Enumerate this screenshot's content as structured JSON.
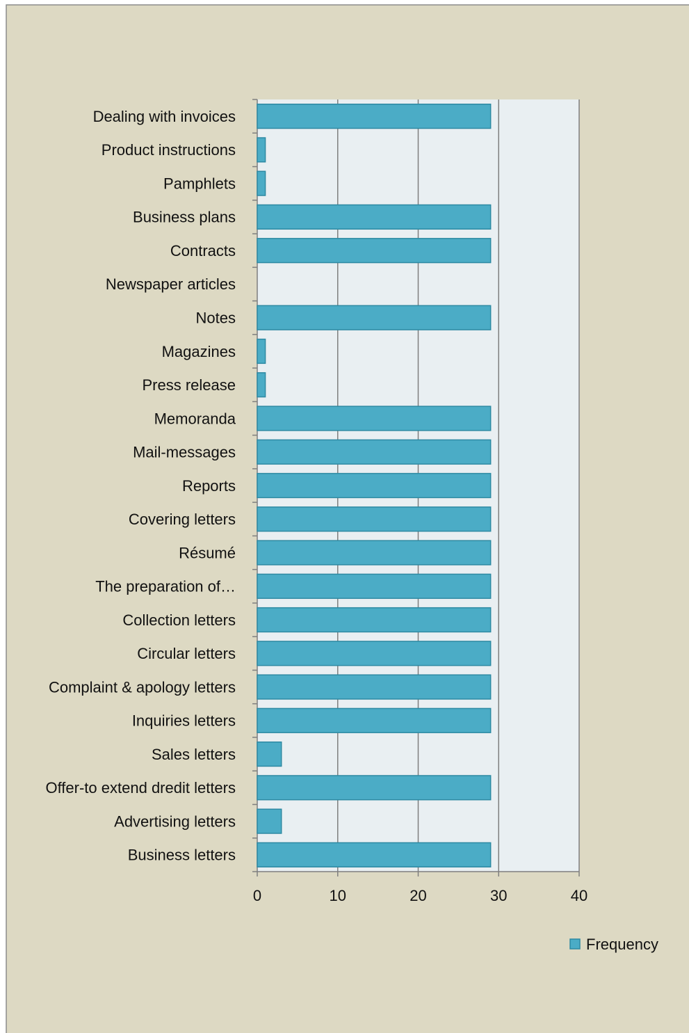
{
  "chart_data": {
    "type": "hbar",
    "categories": [
      "Dealing with invoices",
      "Product instructions",
      "Pamphlets",
      "Business plans",
      "Contracts",
      "Newspaper articles",
      "Notes",
      "Magazines",
      "Press release",
      "Memoranda",
      "Mail-messages",
      "Reports",
      "Covering letters",
      "Résumé",
      "The preparation of…",
      "Collection letters",
      "Circular letters",
      "Complaint & apology letters",
      "Inquiries letters",
      "Sales letters",
      "Offer-to extend dredit letters",
      "Advertising letters",
      "Business letters"
    ],
    "series": [
      {
        "name": "Frequency",
        "color": "#4bacc6",
        "values": [
          29,
          1,
          1,
          29,
          29,
          0,
          29,
          1,
          1,
          29,
          29,
          29,
          29,
          29,
          29,
          29,
          29,
          29,
          29,
          3,
          29,
          3,
          29
        ]
      }
    ],
    "xlim": [
      0,
      40
    ],
    "xticks": [
      0,
      10,
      20,
      30,
      40
    ],
    "grid": true,
    "legend": "bottom-right"
  }
}
